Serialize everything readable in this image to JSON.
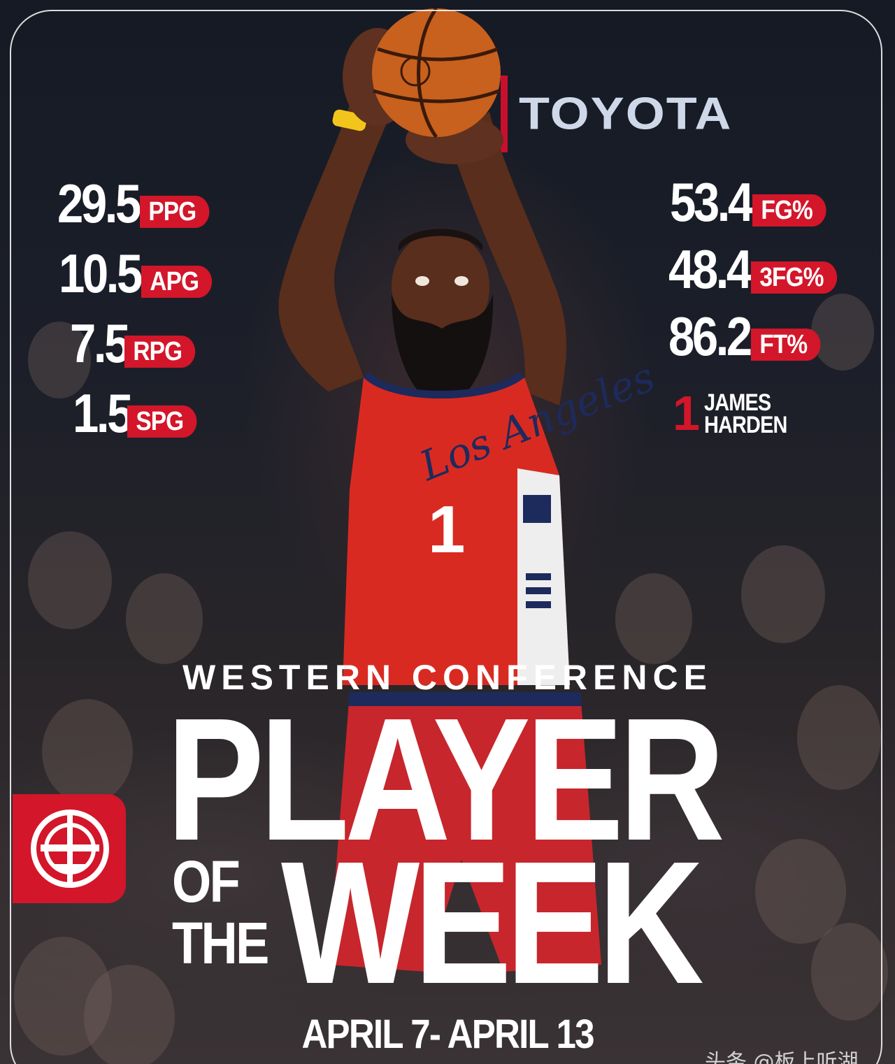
{
  "sponsor": {
    "name": "TOYOTA"
  },
  "stats_left": [
    {
      "value": "29.5",
      "label": "PPG"
    },
    {
      "value": "10.5",
      "label": "APG"
    },
    {
      "value": "7.5",
      "label": "RPG"
    },
    {
      "value": "1.5",
      "label": "SPG"
    }
  ],
  "stats_right": [
    {
      "value": "53.4",
      "label": "FG%"
    },
    {
      "value": "48.4",
      "label": "3FG%"
    },
    {
      "value": "86.2",
      "label": "FT%"
    }
  ],
  "player": {
    "number": "1",
    "first_name": "JAMES",
    "last_name": "HARDEN",
    "jersey_text": "Los Angeles",
    "jersey_number": "1"
  },
  "headline": {
    "conference": "WESTERN CONFERENCE",
    "player": "PLAYER",
    "of": "OF",
    "the": "THE",
    "week": "WEEK"
  },
  "date_range": "APRIL 7- APRIL 13",
  "watermark": "头条 @板上听湖",
  "colors": {
    "accent_red": "#d3162a",
    "text_white": "#ffffff"
  },
  "icons": {
    "team_logo": "clippers-logo-icon",
    "ball": "basketball-icon"
  }
}
